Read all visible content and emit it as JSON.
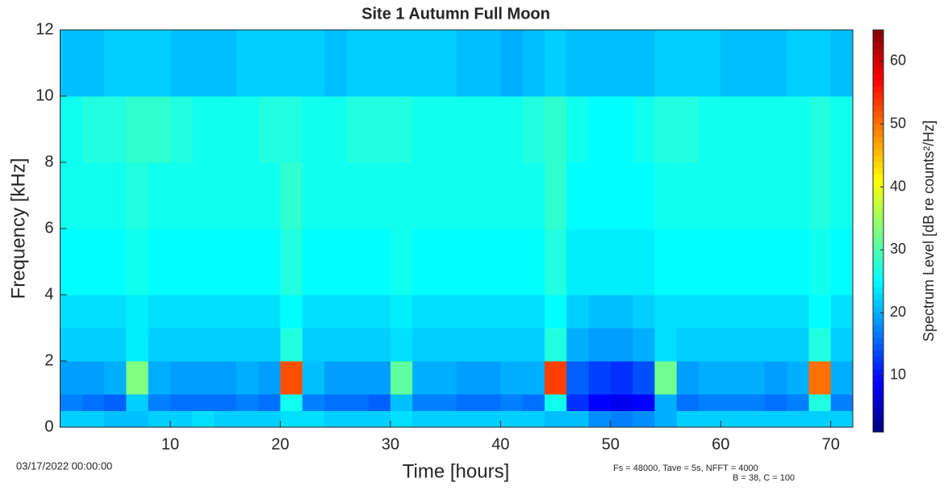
{
  "chart_data": {
    "type": "heatmap",
    "title": "Site 1 Autumn Full Moon",
    "xlabel": "Time [hours]",
    "ylabel": "Frequency [kHz]",
    "xlim": [
      0,
      72
    ],
    "ylim": [
      0,
      12
    ],
    "xticks": [
      10,
      20,
      30,
      40,
      50,
      60,
      70
    ],
    "yticks": [
      0,
      2,
      4,
      6,
      8,
      10,
      12
    ],
    "x_bins": [
      0,
      2,
      4,
      6,
      8,
      10,
      12,
      14,
      16,
      18,
      20,
      22,
      24,
      26,
      28,
      30,
      32,
      34,
      36,
      38,
      40,
      42,
      44,
      46,
      48,
      50,
      52,
      54,
      56,
      58,
      60,
      62,
      64,
      66,
      68,
      70,
      72
    ],
    "y_bins": [
      0,
      0.5,
      1,
      2,
      3,
      4,
      6,
      8,
      10,
      12
    ],
    "z": [
      [
        22,
        22,
        21,
        21,
        22,
        22,
        23,
        22,
        22,
        22,
        23,
        23,
        22,
        22,
        22,
        23,
        22,
        22,
        22,
        22,
        22,
        22,
        21,
        21,
        18,
        17,
        18,
        20,
        22,
        22,
        22,
        22,
        22,
        22,
        22,
        22
      ],
      [
        17,
        16,
        15,
        22,
        17,
        16,
        16,
        16,
        17,
        16,
        26,
        17,
        16,
        16,
        15,
        21,
        17,
        17,
        16,
        16,
        17,
        16,
        26,
        12,
        9,
        8,
        9,
        20,
        16,
        17,
        17,
        17,
        16,
        17,
        27,
        17
      ],
      [
        19,
        19,
        20,
        33,
        20,
        19,
        19,
        19,
        20,
        19,
        52,
        21,
        19,
        19,
        19,
        31,
        20,
        20,
        19,
        19,
        20,
        20,
        53,
        15,
        13,
        12,
        14,
        32,
        19,
        20,
        20,
        20,
        19,
        20,
        50,
        20
      ],
      [
        22,
        22,
        22,
        24,
        22,
        22,
        22,
        22,
        22,
        22,
        27,
        22,
        22,
        22,
        22,
        23,
        22,
        22,
        22,
        22,
        22,
        22,
        27,
        20,
        19,
        19,
        20,
        23,
        22,
        22,
        22,
        22,
        22,
        22,
        27,
        22
      ],
      [
        23,
        23,
        23,
        24,
        23,
        23,
        23,
        23,
        23,
        23,
        25,
        23,
        23,
        23,
        23,
        24,
        23,
        23,
        23,
        23,
        23,
        23,
        25,
        22,
        21,
        21,
        22,
        23,
        23,
        23,
        23,
        23,
        23,
        23,
        25,
        23
      ],
      [
        25,
        25,
        25,
        26,
        25,
        25,
        25,
        25,
        25,
        25,
        27,
        25,
        25,
        25,
        25,
        26,
        25,
        25,
        25,
        25,
        25,
        25,
        27,
        24,
        24,
        24,
        24,
        25,
        25,
        25,
        25,
        25,
        25,
        25,
        26,
        25
      ],
      [
        26,
        26,
        26,
        27,
        26,
        26,
        26,
        26,
        26,
        26,
        28,
        26,
        26,
        26,
        26,
        26,
        26,
        26,
        26,
        26,
        26,
        26,
        28,
        25,
        25,
        25,
        25,
        26,
        26,
        26,
        26,
        26,
        26,
        26,
        27,
        26
      ],
      [
        26,
        27,
        27,
        28,
        28,
        27,
        26,
        26,
        26,
        27,
        27,
        26,
        26,
        27,
        27,
        27,
        26,
        26,
        26,
        26,
        26,
        27,
        28,
        26,
        25,
        25,
        26,
        27,
        27,
        26,
        26,
        26,
        26,
        26,
        27,
        26
      ],
      [
        21,
        21,
        22,
        22,
        22,
        21,
        21,
        21,
        22,
        22,
        22,
        22,
        21,
        22,
        22,
        22,
        22,
        22,
        21,
        21,
        20,
        21,
        22,
        21,
        21,
        21,
        21,
        22,
        22,
        22,
        21,
        21,
        21,
        22,
        22,
        21
      ]
    ],
    "colorbar": {
      "label": "Spectrum Level [dB re counts²/Hz]",
      "clim": [
        1,
        65
      ],
      "ticks": [
        10,
        20,
        30,
        40,
        50,
        60
      ],
      "colormap": "jet"
    },
    "annotations": [
      "03/17/2022 00:00:00",
      "Fs = 48000, Tave = 5s, NFFT = 4000",
      "B = 38, C = 100"
    ]
  }
}
